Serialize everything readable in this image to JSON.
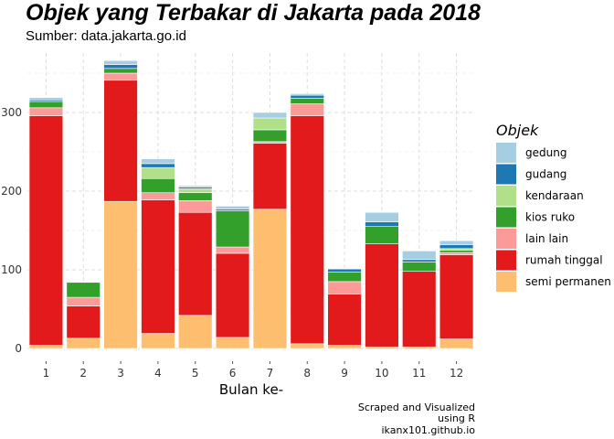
{
  "chart_data": {
    "type": "bar",
    "stacked": true,
    "title": "Objek yang Terbakar di Jakarta pada 2018",
    "subtitle": "Sumber: data.jakarta.go.id",
    "xlabel": "Bulan ke-",
    "ylabel": "",
    "categories": [
      "1",
      "2",
      "3",
      "4",
      "5",
      "6",
      "7",
      "8",
      "9",
      "10",
      "11",
      "12"
    ],
    "ylim": [
      0,
      370
    ],
    "yticks": [
      0,
      100,
      200,
      300
    ],
    "grid": true,
    "legend_title": "Objek",
    "legend_position": "right",
    "caption": [
      "Scraped and Visualized",
      "using R",
      "ikanx101.github.io"
    ],
    "series": [
      {
        "name": "semi permanen",
        "color": "#FDBF6F",
        "values": [
          4,
          13,
          187,
          19,
          42,
          14,
          177,
          6,
          4,
          2,
          2,
          12
        ]
      },
      {
        "name": "rumah tinggal",
        "color": "#E31A1C",
        "values": [
          292,
          41,
          154,
          170,
          131,
          107,
          84,
          290,
          65,
          131,
          96,
          107
        ]
      },
      {
        "name": "lain lain",
        "color": "#FB9A99",
        "values": [
          10,
          11,
          9,
          9,
          15,
          8,
          2,
          15,
          16,
          0,
          0,
          3
        ]
      },
      {
        "name": "kios ruko",
        "color": "#33A02C",
        "values": [
          8,
          19,
          6,
          18,
          10,
          46,
          15,
          7,
          12,
          22,
          12,
          3
        ]
      },
      {
        "name": "kendaraan",
        "color": "#B2DF8A",
        "values": [
          0,
          0,
          0,
          14,
          5,
          0,
          15,
          0,
          0,
          0,
          0,
          2
        ]
      },
      {
        "name": "gudang",
        "color": "#1F78B4",
        "values": [
          2,
          0,
          5,
          5,
          2,
          2,
          0,
          4,
          4,
          6,
          3,
          5
        ]
      },
      {
        "name": "gedung",
        "color": "#A6CEE3",
        "values": [
          3,
          0,
          5,
          6,
          2,
          4,
          7,
          2,
          0,
          12,
          11,
          5
        ]
      }
    ],
    "legend_order": [
      "gedung",
      "gudang",
      "kendaraan",
      "kios ruko",
      "lain lain",
      "rumah tinggal",
      "semi permanen"
    ]
  }
}
